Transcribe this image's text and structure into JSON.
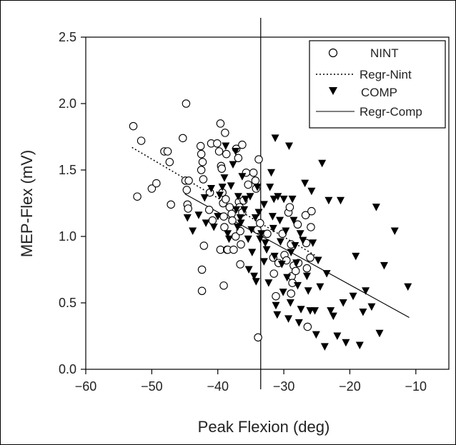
{
  "chart_data": {
    "type": "scatter",
    "xlabel": "Peak Flexion (deg)",
    "ylabel": "MEP-Flex (mV)",
    "xlim": [
      -60,
      -5
    ],
    "ylim": [
      0.0,
      2.5
    ],
    "xticks": [
      -60,
      -50,
      -40,
      -30,
      -20,
      -10
    ],
    "yticks": [
      0.0,
      0.5,
      1.0,
      1.5,
      2.0,
      2.5
    ],
    "xtick_labels": [
      "−60",
      "−50",
      "−40",
      "−30",
      "−20",
      "−10"
    ],
    "ytick_labels": [
      "0.0",
      "0.5",
      "1.0",
      "1.5",
      "2.0",
      "2.5"
    ],
    "vertical_line_x": -33.5,
    "legend_position": "top-right",
    "legend": [
      {
        "label": "NINT",
        "kind": "open-circle"
      },
      {
        "label": "Regr-Nint",
        "kind": "dotted-line"
      },
      {
        "label": "COMP",
        "kind": "filled-triangle"
      },
      {
        "label": "Regr-Comp",
        "kind": "solid-line"
      }
    ],
    "series": [
      {
        "name": "NINT",
        "marker": "open-circle",
        "color": "#000000",
        "points": [
          [
            -52.8,
            1.83
          ],
          [
            -52.2,
            1.3
          ],
          [
            -51.6,
            1.72
          ],
          [
            -50.0,
            1.36
          ],
          [
            -49.3,
            1.4
          ],
          [
            -48.1,
            1.64
          ],
          [
            -47.6,
            1.64
          ],
          [
            -47.3,
            1.56
          ],
          [
            -47.1,
            1.24
          ],
          [
            -45.3,
            1.74
          ],
          [
            -44.9,
            1.42
          ],
          [
            -44.8,
            2.0
          ],
          [
            -44.7,
            1.35
          ],
          [
            -44.6,
            1.24
          ],
          [
            -44.5,
            1.21
          ],
          [
            -44.4,
            1.42
          ],
          [
            -42.6,
            1.68
          ],
          [
            -42.5,
            1.62
          ],
          [
            -42.5,
            1.5
          ],
          [
            -42.3,
            1.56
          ],
          [
            -42.2,
            1.43
          ],
          [
            -42.1,
            0.93
          ],
          [
            -42.4,
            0.75
          ],
          [
            -42.4,
            0.59
          ],
          [
            -41.3,
            1.2
          ],
          [
            -41.2,
            1.33
          ],
          [
            -41.0,
            1.7
          ],
          [
            -40.8,
            1.12
          ],
          [
            -40.1,
            1.7
          ],
          [
            -39.8,
            1.64
          ],
          [
            -39.6,
            1.85
          ],
          [
            -39.5,
            1.53
          ],
          [
            -39.4,
            1.51
          ],
          [
            -39.3,
            1.33
          ],
          [
            -39.2,
            1.25
          ],
          [
            -39.1,
            1.15
          ],
          [
            -39.0,
            1.07
          ],
          [
            -39.6,
            0.9
          ],
          [
            -39.1,
            0.63
          ],
          [
            -38.9,
            1.78
          ],
          [
            -38.7,
            1.62
          ],
          [
            -38.8,
            1.28
          ],
          [
            -38.6,
            0.9
          ],
          [
            -38.5,
            0.9
          ],
          [
            -38.2,
            1.22
          ],
          [
            -37.9,
            1.17
          ],
          [
            -37.8,
            1.12
          ],
          [
            -37.6,
            0.9
          ],
          [
            -37.3,
            1.0
          ],
          [
            -37.2,
            1.66
          ],
          [
            -36.9,
            1.59
          ],
          [
            -36.8,
            1.26
          ],
          [
            -36.7,
            1.22
          ],
          [
            -36.6,
            1.04
          ],
          [
            -36.5,
            0.94
          ],
          [
            -36.6,
            0.79
          ],
          [
            -36.3,
            1.69
          ],
          [
            -36.3,
            1.18
          ],
          [
            -36.1,
            1.27
          ],
          [
            -35.7,
            1.48
          ],
          [
            -35.4,
            1.39
          ],
          [
            -34.6,
            1.48
          ],
          [
            -34.3,
            1.42
          ],
          [
            -34.2,
            1.36
          ],
          [
            -34.0,
            1.05
          ],
          [
            -33.8,
            1.58
          ],
          [
            -33.6,
            1.1
          ],
          [
            -33.9,
            0.24
          ],
          [
            -32.5,
            1.02
          ],
          [
            -31.6,
            0.84
          ],
          [
            -31.5,
            0.72
          ],
          [
            -31.2,
            0.55
          ],
          [
            -30.8,
            0.8
          ],
          [
            -30.2,
            1.02
          ],
          [
            -29.9,
            0.86
          ],
          [
            -29.6,
            0.82
          ],
          [
            -29.3,
            1.18
          ],
          [
            -29.1,
            1.22
          ],
          [
            -28.9,
            0.94
          ],
          [
            -28.8,
            0.7
          ],
          [
            -28.7,
            0.65
          ],
          [
            -28.9,
            0.57
          ],
          [
            -28.5,
            0.78
          ],
          [
            -28.2,
            0.74
          ],
          [
            -27.9,
            1.09
          ],
          [
            -27.8,
            0.8
          ],
          [
            -26.7,
            1.16
          ],
          [
            -26.6,
            0.95
          ],
          [
            -26.5,
            0.76
          ],
          [
            -26.4,
            0.32
          ],
          [
            -26.0,
            0.84
          ],
          [
            -25.9,
            1.07
          ],
          [
            -25.8,
            1.19
          ]
        ]
      },
      {
        "name": "COMP",
        "marker": "filled-triangle",
        "color": "#000000",
        "points": [
          [
            -44.6,
            1.14
          ],
          [
            -43.8,
            1.04
          ],
          [
            -42.9,
            1.16
          ],
          [
            -42.0,
            1.29
          ],
          [
            -41.8,
            1.1
          ],
          [
            -41.0,
            1.36
          ],
          [
            -40.6,
            1.07
          ],
          [
            -40.0,
            1.15
          ],
          [
            -39.7,
            1.31
          ],
          [
            -39.3,
            1.37
          ],
          [
            -39.0,
            1.44
          ],
          [
            -38.8,
            1.68
          ],
          [
            -38.5,
            1.02
          ],
          [
            -38.3,
            0.98
          ],
          [
            -38.0,
            1.38
          ],
          [
            -37.7,
            1.54
          ],
          [
            -37.3,
            1.64
          ],
          [
            -37.2,
            1.2
          ],
          [
            -37.0,
            1.07
          ],
          [
            -36.9,
            1.3
          ],
          [
            -36.6,
            1.14
          ],
          [
            -36.5,
            1.1
          ],
          [
            -36.3,
            1.45
          ],
          [
            -36.0,
            1.2
          ],
          [
            -35.8,
            1.28
          ],
          [
            -35.4,
            0.98
          ],
          [
            -35.3,
            0.75
          ],
          [
            -35.1,
            1.3
          ],
          [
            -34.9,
            1.05
          ],
          [
            -34.8,
            0.88
          ],
          [
            -34.5,
            0.7
          ],
          [
            -34.3,
            1.14
          ],
          [
            -34.2,
            0.66
          ],
          [
            -34.0,
            1.37
          ],
          [
            -33.8,
            1.18
          ],
          [
            -33.6,
            0.98
          ],
          [
            -33.4,
            1.02
          ],
          [
            -33.0,
            1.24
          ],
          [
            -32.8,
            0.95
          ],
          [
            -32.6,
            0.9
          ],
          [
            -32.3,
            0.65
          ],
          [
            -32.1,
            1.37
          ],
          [
            -31.9,
            1.48
          ],
          [
            -31.7,
            1.15
          ],
          [
            -31.6,
            1.06
          ],
          [
            -31.4,
            0.85
          ],
          [
            -31.3,
            1.74
          ],
          [
            -31.2,
            0.48
          ],
          [
            -31.0,
            0.41
          ],
          [
            -30.9,
            1.3
          ],
          [
            -30.6,
            1.12
          ],
          [
            -30.5,
            0.96
          ],
          [
            -30.3,
            0.79
          ],
          [
            -30.1,
            0.58
          ],
          [
            -30.0,
            1.28
          ],
          [
            -29.7,
            1.04
          ],
          [
            -29.5,
            0.69
          ],
          [
            -29.3,
            0.38
          ],
          [
            -29.2,
            1.68
          ],
          [
            -29.0,
            0.5
          ],
          [
            -28.7,
            1.28
          ],
          [
            -28.5,
            1.12
          ],
          [
            -28.3,
            0.93
          ],
          [
            -28.1,
            0.8
          ],
          [
            -27.9,
            0.63
          ],
          [
            -27.7,
            0.35
          ],
          [
            -27.4,
            0.45
          ],
          [
            -27.1,
            0.97
          ],
          [
            -26.8,
            1.4
          ],
          [
            -26.5,
            0.7
          ],
          [
            -26.3,
            0.59
          ],
          [
            -26.0,
            0.44
          ],
          [
            -25.8,
            1.34
          ],
          [
            -25.6,
            0.95
          ],
          [
            -25.3,
            0.44
          ],
          [
            -25.1,
            0.26
          ],
          [
            -24.8,
            0.82
          ],
          [
            -24.5,
            0.62
          ],
          [
            -24.2,
            1.55
          ],
          [
            -23.8,
            0.17
          ],
          [
            -23.5,
            0.72
          ],
          [
            -23.2,
            1.27
          ],
          [
            -22.9,
            0.44
          ],
          [
            -22.5,
            0.4
          ],
          [
            -21.9,
            0.25
          ],
          [
            -21.4,
            1.27
          ],
          [
            -21.0,
            0.5
          ],
          [
            -20.6,
            0.2
          ],
          [
            -19.5,
            0.55
          ],
          [
            -19.1,
            0.85
          ],
          [
            -18.5,
            0.18
          ],
          [
            -18.0,
            0.43
          ],
          [
            -16.7,
            0.47
          ],
          [
            -15.5,
            0.27
          ],
          [
            -14.8,
            0.78
          ],
          [
            -13.2,
            1.04
          ],
          [
            -11.2,
            0.62
          ],
          [
            -17.6,
            0.59
          ],
          [
            -31.5,
            1.28
          ],
          [
            -33.0,
            0.81
          ],
          [
            -27.5,
            1.02
          ],
          [
            -28.9,
            0.88
          ],
          [
            -16.0,
            1.22
          ]
        ]
      }
    ],
    "regression_lines": [
      {
        "name": "Regr-Nint",
        "style": "dotted",
        "x": [
          -53.0,
          -25.0
        ],
        "y": [
          1.67,
          0.85
        ]
      },
      {
        "name": "Regr-Comp",
        "style": "solid",
        "x": [
          -45.0,
          -11.0
        ],
        "y": [
          1.32,
          0.39
        ]
      }
    ]
  }
}
